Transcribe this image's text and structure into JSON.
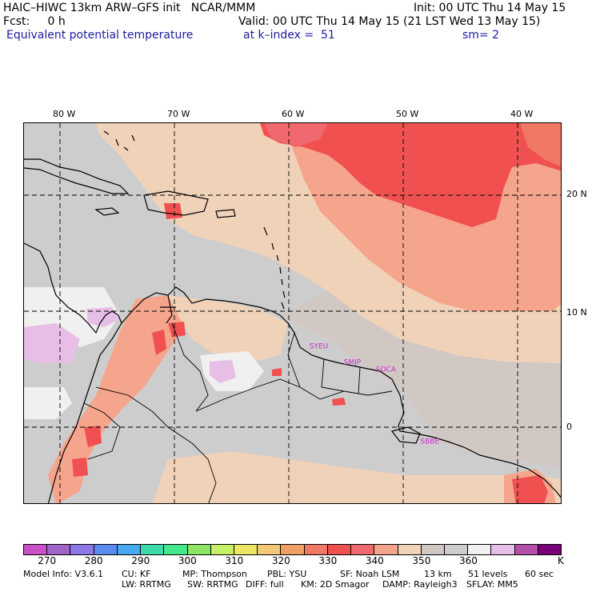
{
  "header": {
    "line1_left": "HAIC–HIWC 13km ARW–GFS init   NCAR/MMM",
    "line1_right": "Init: 00 UTC Thu 14 May 15",
    "fcst_label": "Fcst:     0 h",
    "valid": "Valid: 00 UTC Thu 14 May 15 (21 LST Wed 13 May 15)",
    "field_name": "Equivalent potential temperature",
    "level": "at k–index =  51",
    "smoothing": "sm= 2"
  },
  "map": {
    "lon_labels": [
      "80 W",
      "70 W",
      "60 W",
      "50 W",
      "40 W"
    ],
    "lon_values": [
      -80,
      -70,
      -60,
      -50,
      -40
    ],
    "lat_labels": [
      "20 N",
      "10 N",
      "0"
    ],
    "lat_values": [
      20,
      10,
      0
    ],
    "stations": [
      {
        "name": "SYEU",
        "lon": -58.2,
        "lat": 6.8
      },
      {
        "name": "SMJP",
        "lon": -55.2,
        "lat": 5.4
      },
      {
        "name": "SOCA",
        "lon": -52.4,
        "lat": 4.8
      },
      {
        "name": "SBBE",
        "lon": -48.5,
        "lat": -1.4
      }
    ],
    "line_color": "#000000"
  },
  "colorbar": {
    "colors": [
      "#c850c8",
      "#a064c8",
      "#8c78e6",
      "#5a8cf0",
      "#46aaf0",
      "#3cdcaa",
      "#46e88c",
      "#8ce664",
      "#c8f064",
      "#ebe664",
      "#f5c878",
      "#f0a064",
      "#f07864",
      "#f05050",
      "#f0696e",
      "#f5a58c",
      "#f0d2b9",
      "#d2c8c3",
      "#cdcdcd",
      "#f0f0f0",
      "#e6bee6",
      "#b450aa",
      "#780078"
    ],
    "tick_labels": [
      "270",
      "280",
      "290",
      "300",
      "310",
      "320",
      "330",
      "340",
      "350",
      "360"
    ],
    "unit": "K"
  },
  "footer": {
    "line1": [
      "Model Info: V3.6.1",
      "CU: KF",
      "MP: Thompson",
      "PBL: YSU",
      "SF: Noah LSM",
      "13 km",
      "51 levels",
      "60 sec"
    ],
    "line2": [
      "LW: RRTMG",
      "SW: RRTMG",
      "DIFF: full",
      "KM: 2D Smagor",
      "DAMP: Rayleigh3",
      "SFLAY: MM5"
    ]
  }
}
